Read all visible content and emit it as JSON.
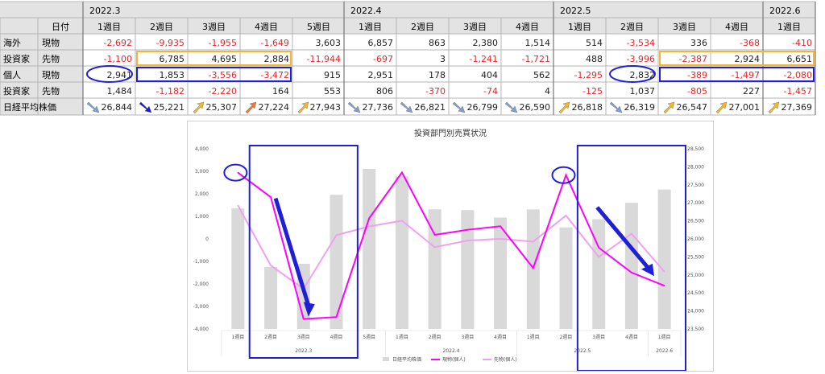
{
  "table": {
    "header_label": "日付",
    "months": [
      {
        "label": "2022.3",
        "weeks": 5
      },
      {
        "label": "2022.4",
        "weeks": 4
      },
      {
        "label": "2022.5",
        "weeks": 4
      },
      {
        "label": "2022.6",
        "weeks": 1
      }
    ],
    "weeks": [
      "1週目",
      "2週目",
      "3週目",
      "4週目",
      "5週目",
      "1週目",
      "2週目",
      "3週目",
      "4週目",
      "1週目",
      "2週目",
      "3週目",
      "4週目",
      "1週目"
    ],
    "group_labels": [
      [
        "海外",
        "投資家"
      ],
      [
        "個人",
        "投資家"
      ]
    ],
    "row_labels": [
      "現物",
      "先物",
      "現物",
      "先物"
    ],
    "rows": [
      [
        -2692,
        -9935,
        -1955,
        -1649,
        3603,
        6857,
        863,
        2380,
        1514,
        514,
        -3534,
        336,
        -368,
        -410
      ],
      [
        -1100,
        6785,
        4695,
        2884,
        -11944,
        -697,
        3,
        -1241,
        -1721,
        488,
        -3996,
        -2387,
        2924,
        6651
      ],
      [
        2941,
        1853,
        -3556,
        -3472,
        915,
        2951,
        178,
        404,
        562,
        -1295,
        2832,
        -389,
        -1497,
        -2080
      ],
      [
        1484,
        -1182,
        -2220,
        164,
        553,
        806,
        -370,
        -74,
        4,
        -125,
        1037,
        -805,
        227,
        -1457
      ]
    ],
    "nikkei_label": "日経平均株価",
    "nikkei": [
      26844,
      25221,
      25307,
      27224,
      27943,
      27736,
      26821,
      26799,
      26590,
      26818,
      26319,
      26547,
      27001,
      27369
    ],
    "nikkei_arrows": [
      "down",
      "down",
      "up",
      "up",
      "up",
      "down",
      "down",
      "down",
      "down",
      "up",
      "down",
      "up",
      "up",
      "up"
    ],
    "colors": {
      "header": "#e3e3e3",
      "negative": "#e8262a",
      "yellow_box": "#f2b632",
      "blue_box": "#1f1fd6",
      "arrow_up": "#f5b624",
      "arrow_up_strong": "#e9793a",
      "arrow_down": "#7f9fd0",
      "arrow_down_strong": "#1a1ad0"
    }
  },
  "chart_data": {
    "type": "bar+line",
    "title": "投資部門別売買状況",
    "categories": [
      "1週目",
      "2週目",
      "3週目",
      "4週目",
      "5週目",
      "1週目",
      "2週目",
      "3週目",
      "4週目",
      "1週目",
      "2週目",
      "3週目",
      "4週目",
      "1週目"
    ],
    "month_groups": [
      {
        "label": "2022.3",
        "start": 0,
        "end": 4
      },
      {
        "label": "2022.4",
        "start": 5,
        "end": 8
      },
      {
        "label": "2022.5",
        "start": 9,
        "end": 12
      },
      {
        "label": "2022.6",
        "start": 13,
        "end": 13
      }
    ],
    "series": [
      {
        "name": "日経平均株価",
        "type": "bar",
        "axis": "right",
        "color": "#d9d9d9",
        "values": [
          26844,
          25221,
          25307,
          27224,
          27943,
          27736,
          26821,
          26799,
          26590,
          26818,
          26319,
          26547,
          27001,
          27369
        ]
      },
      {
        "name": "現物(個人)",
        "type": "line",
        "axis": "left",
        "color": "#ff00ff",
        "values": [
          2941,
          1853,
          -3556,
          -3472,
          915,
          2951,
          178,
          404,
          562,
          -1295,
          2832,
          -389,
          -1497,
          -2080
        ]
      },
      {
        "name": "先物(個人)",
        "type": "line",
        "axis": "left",
        "color": "#f0a0f0",
        "values": [
          1484,
          -1182,
          -2220,
          164,
          553,
          806,
          -370,
          -74,
          4,
          -125,
          1037,
          -805,
          227,
          -1457
        ]
      }
    ],
    "y_left": {
      "min": -4000,
      "max": 4000,
      "step": 1000,
      "ticks": [
        "4,000",
        "3,000",
        "2,000",
        "1,000",
        "0",
        "-1,000",
        "-2,000",
        "-3,000",
        "-4,000"
      ]
    },
    "y_right": {
      "min": 23500,
      "max": 28500,
      "step": 500,
      "ticks": [
        "28,500",
        "28,000",
        "27,500",
        "27,000",
        "26,500",
        "26,000",
        "25,500",
        "25,000",
        "24,500",
        "24,000",
        "23,500"
      ]
    },
    "legend_position": "bottom",
    "grid": false
  }
}
